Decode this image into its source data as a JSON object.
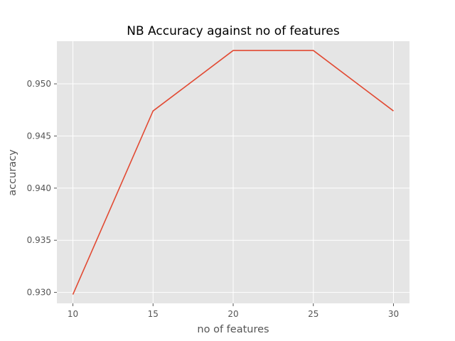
{
  "chart_data": {
    "type": "line",
    "title": "NB Accuracy against no of features",
    "xlabel": "no of features",
    "ylabel": "accuracy",
    "x": [
      10,
      15,
      20,
      25,
      30
    ],
    "series": [
      {
        "values": [
          0.9298,
          0.9474,
          0.9532,
          0.9532,
          0.9474
        ],
        "color": "#E24A33"
      }
    ],
    "xticks": [
      10,
      15,
      20,
      25,
      30
    ],
    "xtick_labels": [
      "10",
      "15",
      "20",
      "25",
      "30"
    ],
    "yticks": [
      0.93,
      0.935,
      0.94,
      0.945,
      0.95
    ],
    "ytick_labels": [
      "0.930",
      "0.935",
      "0.940",
      "0.945",
      "0.950"
    ],
    "xlim": [
      9.0,
      31.0
    ],
    "ylim": [
      0.92895,
      0.95409
    ],
    "grid": true,
    "background": "#E5E5E5",
    "gridcolor": "#FFFFFF"
  }
}
